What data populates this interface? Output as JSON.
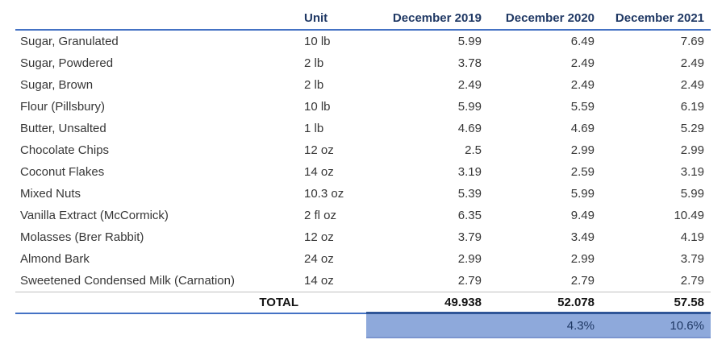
{
  "table": {
    "headers": {
      "item": "",
      "unit": "Unit",
      "dec2019": "December 2019",
      "dec2020": "December 2020",
      "dec2021": "December 2021"
    },
    "rows": [
      {
        "item": "Sugar, Granulated",
        "unit": "10 lb",
        "dec2019": "5.99",
        "dec2020": "6.49",
        "dec2021": "7.69"
      },
      {
        "item": "Sugar, Powdered",
        "unit": "2 lb",
        "dec2019": "3.78",
        "dec2020": "2.49",
        "dec2021": "2.49"
      },
      {
        "item": "Sugar, Brown",
        "unit": "2 lb",
        "dec2019": "2.49",
        "dec2020": "2.49",
        "dec2021": "2.49"
      },
      {
        "item": "Flour (Pillsbury)",
        "unit": "10 lb",
        "dec2019": "5.99",
        "dec2020": "5.59",
        "dec2021": "6.19"
      },
      {
        "item": "Butter, Unsalted",
        "unit": "1 lb",
        "dec2019": "4.69",
        "dec2020": "4.69",
        "dec2021": "5.29"
      },
      {
        "item": "Chocolate Chips",
        "unit": "12 oz",
        "dec2019": "2.5",
        "dec2020": "2.99",
        "dec2021": "2.99"
      },
      {
        "item": "Coconut Flakes",
        "unit": "14 oz",
        "dec2019": "3.19",
        "dec2020": "2.59",
        "dec2021": "3.19"
      },
      {
        "item": "Mixed Nuts",
        "unit": "10.3 oz",
        "dec2019": "5.39",
        "dec2020": "5.99",
        "dec2021": "5.99"
      },
      {
        "item": "Vanilla Extract (McCormick)",
        "unit": "2 fl oz",
        "dec2019": "6.35",
        "dec2020": "9.49",
        "dec2021": "10.49"
      },
      {
        "item": "Molasses (Brer Rabbit)",
        "unit": "12 oz",
        "dec2019": "3.79",
        "dec2020": "3.49",
        "dec2021": "4.19"
      },
      {
        "item": "Almond Bark",
        "unit": "24 oz",
        "dec2019": "2.99",
        "dec2020": "2.99",
        "dec2021": "3.79"
      },
      {
        "item": "Sweetened Condensed Milk (Carnation)",
        "unit": "14 oz",
        "dec2019": "2.79",
        "dec2020": "2.79",
        "dec2021": "2.79"
      }
    ],
    "total": {
      "label": "TOTAL",
      "dec2019": "49.938",
      "dec2020": "52.078",
      "dec2021": "57.58"
    },
    "pct_change": {
      "dec2019": "",
      "dec2020": "4.3%",
      "dec2021": "10.6%"
    }
  },
  "colors": {
    "header_text": "#1F3864",
    "header_rule": "#4472C4",
    "total_rule": "#4472C4",
    "gray_rule": "#BFBFBF",
    "band_fill": "#8EA9DB",
    "band_top_border": "#2F5597",
    "body_text": "#363636",
    "pct_text": "#1F3864"
  },
  "chart_data": {
    "type": "table",
    "title": "",
    "columns": [
      "Item",
      "Unit",
      "December 2019",
      "December 2020",
      "December 2021"
    ],
    "rows": [
      [
        "Sugar, Granulated",
        "10 lb",
        5.99,
        6.49,
        7.69
      ],
      [
        "Sugar, Powdered",
        "2 lb",
        3.78,
        2.49,
        2.49
      ],
      [
        "Sugar, Brown",
        "2 lb",
        2.49,
        2.49,
        2.49
      ],
      [
        "Flour (Pillsbury)",
        "10 lb",
        5.99,
        5.59,
        6.19
      ],
      [
        "Butter, Unsalted",
        "1 lb",
        4.69,
        4.69,
        5.29
      ],
      [
        "Chocolate Chips",
        "12 oz",
        2.5,
        2.99,
        2.99
      ],
      [
        "Coconut Flakes",
        "14 oz",
        3.19,
        2.59,
        3.19
      ],
      [
        "Mixed Nuts",
        "10.3 oz",
        5.39,
        5.99,
        5.99
      ],
      [
        "Vanilla Extract (McCormick)",
        "2 fl oz",
        6.35,
        9.49,
        10.49
      ],
      [
        "Molasses (Brer Rabbit)",
        "12 oz",
        3.79,
        3.49,
        4.19
      ],
      [
        "Almond Bark",
        "24 oz",
        2.99,
        2.99,
        3.79
      ],
      [
        "Sweetened Condensed Milk (Carnation)",
        "14 oz",
        2.79,
        2.79,
        2.79
      ]
    ],
    "totals": {
      "December 2019": 49.938,
      "December 2020": 52.078,
      "December 2021": 57.58
    },
    "pct_change": {
      "December 2020": "4.3%",
      "December 2021": "10.6%"
    }
  }
}
